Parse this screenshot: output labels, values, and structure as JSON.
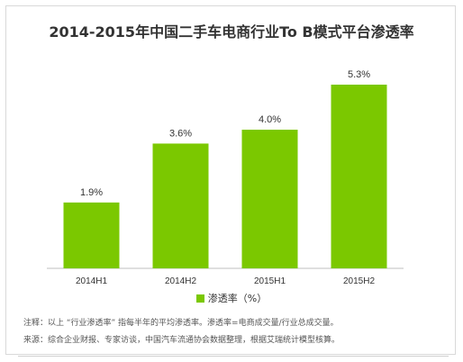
{
  "chart_data": {
    "type": "bar",
    "title": "2014-2015年中国二手车电商行业To B模式平台渗透率",
    "categories": [
      "2014H1",
      "2014H2",
      "2015H1",
      "2015H2"
    ],
    "series": [
      {
        "name": "渗透率（%）",
        "values": [
          1.9,
          3.6,
          4.0,
          5.3
        ]
      }
    ],
    "data_labels": [
      "1.9%",
      "3.6%",
      "4.0%",
      "5.3%"
    ],
    "ylim": [
      0,
      6
    ],
    "grid": false,
    "legend": "bottom",
    "bar_color": "#7bc800"
  },
  "notes": {
    "note": "注释：以上 “行业渗透率” 指每半年的平均渗透率。渗透率=电商成交量/行业总成交量。",
    "source": "来源：综合企业财报、专家访谈，中国汽车流通协会数据整理，根据艾瑞统计模型核算。"
  }
}
